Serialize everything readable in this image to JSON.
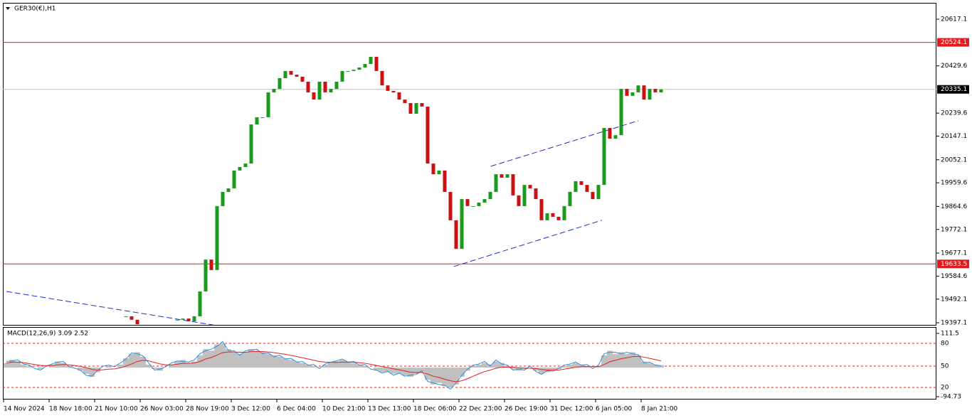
{
  "chart_data": {
    "type": "candlestick",
    "symbol": "GER30(€),H1",
    "categories": [
      "14 Nov 2024",
      null,
      null,
      null,
      null,
      null,
      null,
      null,
      "18 Nov 18:00",
      null,
      null,
      null,
      null,
      null,
      null,
      null,
      "21 Nov 10:00",
      null,
      null,
      null,
      null,
      null,
      null,
      null,
      "26 Nov 03:00",
      null,
      null,
      null,
      null,
      null,
      null,
      null,
      "28 Nov 19:00",
      null,
      null,
      null,
      null,
      null,
      null,
      null,
      "3 Dec 12:00",
      null,
      null,
      null,
      null,
      null,
      null,
      null,
      "6 Dec 04:00",
      null,
      null,
      null,
      null,
      null,
      null,
      null,
      "10 Dec 21:00",
      null,
      null,
      null,
      null,
      null,
      null,
      null,
      "13 Dec 13:00",
      null,
      null,
      null,
      null,
      null,
      null,
      null,
      "18 Dec 06:00",
      null,
      null,
      null,
      null,
      null,
      null,
      null,
      "22 Dec 23:00",
      null,
      null,
      null,
      null,
      null,
      null,
      null,
      "26 Dec 19:00",
      null,
      null,
      null,
      null,
      null,
      null,
      null,
      "31 Dec 12:00",
      null,
      null,
      null,
      null,
      null,
      null,
      null,
      "6 Jan 05:00",
      null,
      null,
      null,
      null,
      null,
      null,
      null,
      "8 Jan 21:00",
      null,
      null,
      null
    ],
    "close": [
      null,
      null,
      null,
      null,
      null,
      null,
      null,
      null,
      null,
      null,
      null,
      null,
      null,
      null,
      null,
      null,
      null,
      null,
      null,
      null,
      null,
      19423,
      19409,
      19391,
      null,
      null,
      null,
      null,
      null,
      null,
      19409,
      19414,
      19403,
      19423,
      19523,
      19651,
      19609,
      19866,
      19923,
      19937,
      20009,
      20023,
      20037,
      20194,
      20223,
      20223,
      20323,
      20337,
      20380,
      20409,
      20394,
      20386,
      20366,
      20323,
      20294,
      20366,
      20323,
      20337,
      20366,
      20409,
      20409,
      20414,
      20423,
      20437,
      20466,
      20409,
      20351,
      20329,
      20323,
      20294,
      20280,
      20237,
      20280,
      20266,
      20037,
      19994,
      20009,
      19923,
      19809,
      19694,
      19894,
      19866,
      19866,
      19880,
      19894,
      19923,
      19994,
      19980,
      19994,
      19909,
      19866,
      19951,
      19937,
      19894,
      19809,
      19837,
      19823,
      19809,
      19866,
      19923,
      19966,
      19951,
      19923,
      19894,
      19951,
      20180,
      20137,
      20151,
      20337,
      20309,
      20323,
      20351,
      20294,
      20337,
      20323,
      20335.1
    ],
    "up_color": "#1a9a1a",
    "down_color": "#cc1010",
    "ylim": [
      19385.7,
      20680
    ],
    "yticks": [
      20617.1,
      20429.6,
      20239.6,
      20147.1,
      20052.1,
      19959.6,
      19864.6,
      19772.1,
      19677.1,
      19584.6,
      19492.1,
      19397.1
    ],
    "levels": [
      {
        "value": 20524.1,
        "color": "#e41b1b"
      },
      {
        "value": 19633.5,
        "color": "#e41b1b"
      }
    ],
    "current_price": 20335.1,
    "trendlines": [
      {
        "start": [
          0,
          19523
        ],
        "end": [
          36.9,
          19386
        ],
        "color": "#1c2fcc"
      },
      {
        "start": [
          78.6,
          19623
        ],
        "end": [
          104.6,
          19809
        ],
        "color": "#1c2fcc"
      },
      {
        "start": [
          85.1,
          20026
        ],
        "end": [
          111,
          20209
        ],
        "color": "#1c2fcc"
      }
    ],
    "indicator": {
      "type": "macd",
      "label": "MACD(12,26,9) 3.09 2.52",
      "ylim": [
        -101.7,
        130
      ],
      "yticks": [
        111.5,
        -94.73
      ],
      "levels": [
        {
          "value": 79,
          "label": "80"
        },
        {
          "value": 4.9,
          "label": "50"
        },
        {
          "value": -64.6,
          "label": "20"
        }
      ],
      "histogram_color": "#c0c0c0",
      "signal_color": "#e02020",
      "main_color": "#2f8fe0",
      "histogram": [
        15,
        25,
        20,
        10,
        5,
        0,
        -5,
        0,
        10,
        20,
        15,
        5,
        0,
        -10,
        -20,
        -30,
        -15,
        0,
        5,
        0,
        10,
        30,
        45,
        50,
        35,
        10,
        -5,
        -10,
        0,
        10,
        20,
        25,
        15,
        20,
        40,
        60,
        55,
        75,
        80,
        60,
        50,
        45,
        50,
        60,
        55,
        50,
        45,
        40,
        35,
        30,
        25,
        20,
        15,
        10,
        5,
        0,
        10,
        15,
        20,
        25,
        20,
        15,
        10,
        5,
        0,
        -10,
        -15,
        -15,
        -20,
        -20,
        -25,
        -30,
        -20,
        -15,
        -40,
        -55,
        -50,
        -60,
        -65,
        -55,
        -30,
        -10,
        5,
        10,
        15,
        10,
        20,
        15,
        5,
        -5,
        -10,
        -5,
        0,
        -10,
        -20,
        -15,
        -10,
        -5,
        5,
        10,
        15,
        10,
        5,
        0,
        5,
        40,
        55,
        45,
        50,
        45,
        50,
        40,
        20,
        15,
        10,
        8
      ],
      "signal": [
        15,
        18,
        18,
        16,
        13,
        10,
        7,
        6,
        7,
        9,
        10,
        9,
        7,
        4,
        0,
        -6,
        -8,
        -7,
        -5,
        -4,
        -1,
        5,
        12,
        20,
        24,
        22,
        17,
        12,
        9,
        9,
        11,
        14,
        14,
        15,
        20,
        28,
        33,
        41,
        49,
        51,
        51,
        50,
        50,
        52,
        53,
        52,
        51,
        49,
        46,
        43,
        40,
        36,
        32,
        28,
        24,
        20,
        18,
        17,
        17,
        18,
        18,
        18,
        16,
        14,
        11,
        7,
        3,
        0,
        -4,
        -7,
        -11,
        -15,
        -16,
        -16,
        -21,
        -28,
        -32,
        -38,
        -43,
        -46,
        -43,
        -36,
        -28,
        -20,
        -13,
        -8,
        -2,
        1,
        2,
        1,
        -1,
        -2,
        -2,
        -3,
        -6,
        -8,
        -8,
        -8,
        -5,
        -2,
        1,
        3,
        3,
        3,
        3,
        10,
        19,
        24,
        29,
        32,
        36,
        37,
        34,
        30,
        26,
        22
      ],
      "main": [
        20,
        22,
        25,
        12,
        8,
        -3,
        -8,
        5,
        12,
        18,
        20,
        3,
        -2,
        -8,
        -25,
        -28,
        -10,
        5,
        8,
        3,
        15,
        28,
        48,
        45,
        38,
        15,
        -8,
        -5,
        3,
        15,
        22,
        20,
        18,
        25,
        45,
        55,
        60,
        70,
        85,
        55,
        55,
        40,
        55,
        58,
        60,
        45,
        48,
        35,
        40,
        28,
        30,
        18,
        20,
        8,
        10,
        -3,
        12,
        18,
        22,
        28,
        18,
        20,
        8,
        10,
        -5,
        -8,
        -18,
        -12,
        -25,
        -18,
        -28,
        -25,
        -22,
        -10,
        -45,
        -50,
        -55,
        -58,
        -70,
        -50,
        -25,
        -5,
        8,
        12,
        20,
        5,
        25,
        12,
        8,
        -8,
        -5,
        -8,
        5,
        -12,
        -22,
        -10,
        -12,
        -2,
        8,
        12,
        18,
        8,
        10,
        -3,
        8,
        45,
        50,
        50,
        45,
        50,
        45,
        42,
        15,
        18,
        8,
        6
      ]
    }
  }
}
